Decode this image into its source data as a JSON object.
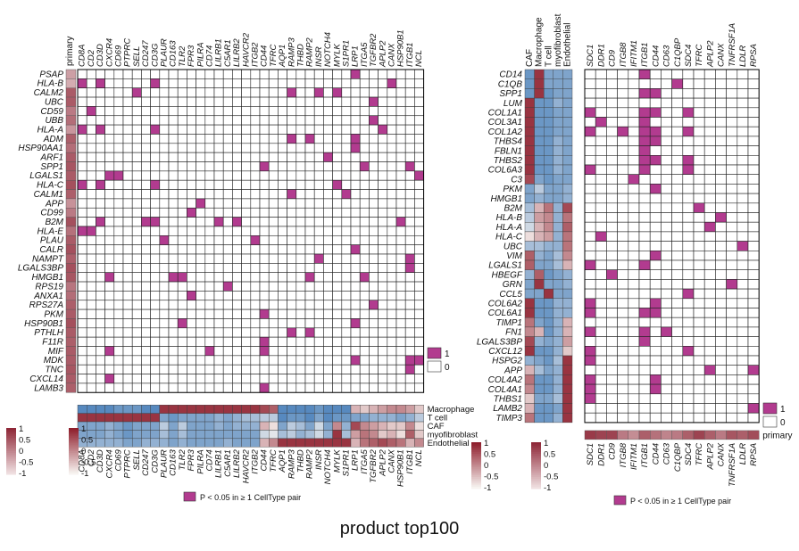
{
  "caption": "product  top100",
  "colors": {
    "sig": "#b23b8f",
    "grid": "#222222",
    "frame": "#000000",
    "diverging": {
      "neg": "#2f6fb3",
      "mid": "#f7f3f0",
      "pos": "#8f1f2d"
    },
    "primary": {
      "low": "#efdfe0",
      "high": "#8f2838"
    }
  },
  "chart_data": [
    {
      "type": "heatmap",
      "title": "",
      "rows": [
        "PSAP",
        "HLA-B",
        "CALM2",
        "UBC",
        "CD59",
        "UBB",
        "HLA-A",
        "ADM",
        "HSP90AA1",
        "ARF1",
        "SPP1",
        "LGALS1",
        "HLA-C",
        "CALM1",
        "APP",
        "CD99",
        "B2M",
        "HLA-E",
        "PLAU",
        "CALR",
        "NAMPT",
        "LGALS3BP",
        "HMGB1",
        "RPS19",
        "ANXA1",
        "RPS27A",
        "PKM",
        "HSP90B1",
        "PTHLH",
        "F11R",
        "MIF",
        "MDK",
        "TNC",
        "CXCL14",
        "LAMB3"
      ],
      "columns": [
        "CD8A",
        "CD2",
        "CD3D",
        "CXCR4",
        "CD69",
        "PTPRC",
        "SELL",
        "CD247",
        "CD3G",
        "PLAUR",
        "CD163",
        "TLR2",
        "FPR3",
        "PILRA",
        "CD74",
        "LILRB1",
        "C5AR1",
        "LILRB2",
        "HAVCR2",
        "ITGB2",
        "CD44",
        "TFRC",
        "AQP1",
        "RAMP3",
        "THBD",
        "RAMP2",
        "INSR",
        "NOTCH4",
        "MYLK",
        "S1PR1",
        "LRP1",
        "ITGA5",
        "TGFBR2",
        "APLP2",
        "CANX",
        "HSP90B1",
        "ITGB1",
        "NCL"
      ],
      "row_annotation": {
        "name": "primary",
        "values": [
          0.35,
          0.28,
          0.72,
          0.72,
          0.55,
          0.62,
          0.4,
          0.7,
          0.62,
          0.72,
          0.75,
          0.72,
          0.78,
          0.7,
          0.42,
          0.55,
          0.78,
          0.6,
          0.72,
          0.78,
          0.7,
          0.78,
          0.75,
          0.58,
          0.62,
          0.7,
          0.72,
          0.78,
          0.72,
          0.7,
          0.72,
          0.72,
          0.75,
          0.72,
          0.7
        ]
      },
      "matrix_value": "1 = P < 0.05 in ≥ 1 CellType pair, 0 = not significant",
      "significant_cells": [
        [
          "HLA-B",
          "CD8A"
        ],
        [
          "HLA-B",
          "CD3D"
        ],
        [
          "HLA-B",
          "CD3G"
        ],
        [
          "HLA-B",
          "CANX"
        ],
        [
          "PSAP",
          "LRP1"
        ],
        [
          "CALM2",
          "SELL"
        ],
        [
          "CALM2",
          "RAMP3"
        ],
        [
          "CALM2",
          "INSR"
        ],
        [
          "CALM2",
          "MYLK"
        ],
        [
          "UBC",
          "TGFBR2"
        ],
        [
          "CD59",
          "CD2"
        ],
        [
          "UBB",
          "TGFBR2"
        ],
        [
          "HLA-A",
          "CD8A"
        ],
        [
          "HLA-A",
          "CD3D"
        ],
        [
          "HLA-A",
          "CD3G"
        ],
        [
          "HLA-A",
          "APLP2"
        ],
        [
          "ADM",
          "RAMP3"
        ],
        [
          "ADM",
          "RAMP2"
        ],
        [
          "ADM",
          "LRP1"
        ],
        [
          "HSP90AA1",
          "LRP1"
        ],
        [
          "ARF1",
          "NOTCH4"
        ],
        [
          "SPP1",
          "CD44"
        ],
        [
          "SPP1",
          "ITGA5"
        ],
        [
          "SPP1",
          "ITGB1"
        ],
        [
          "LGALS1",
          "CXCR4"
        ],
        [
          "LGALS1",
          "CD69"
        ],
        [
          "LGALS1",
          "NCL"
        ],
        [
          "HLA-C",
          "CD8A"
        ],
        [
          "HLA-C",
          "CD3D"
        ],
        [
          "HLA-C",
          "CD3G"
        ],
        [
          "HLA-C",
          "MYLK"
        ],
        [
          "CALM1",
          "RAMP3"
        ],
        [
          "CALM1",
          "S1PR1"
        ],
        [
          "APP",
          "PILRA"
        ],
        [
          "CD99",
          "FPR3"
        ],
        [
          "B2M",
          "CD3D"
        ],
        [
          "B2M",
          "CD247"
        ],
        [
          "B2M",
          "CD3G"
        ],
        [
          "B2M",
          "LILRB1"
        ],
        [
          "B2M",
          "LILRB2"
        ],
        [
          "B2M",
          "HSP90B1"
        ],
        [
          "HLA-E",
          "CD8A"
        ],
        [
          "HLA-E",
          "CD2"
        ],
        [
          "PLAU",
          "PLAUR"
        ],
        [
          "PLAU",
          "ITGB2"
        ],
        [
          "CALR",
          "LRP1"
        ],
        [
          "NAMPT",
          "INSR"
        ],
        [
          "NAMPT",
          "ITGB1"
        ],
        [
          "LGALS3BP",
          "ITGB1"
        ],
        [
          "HMGB1",
          "CXCR4"
        ],
        [
          "HMGB1",
          "TLR2"
        ],
        [
          "HMGB1",
          "CD163"
        ],
        [
          "HMGB1",
          "RAMP2"
        ],
        [
          "HMGB1",
          "ITGA5"
        ],
        [
          "RPS19",
          "C5AR1"
        ],
        [
          "ANXA1",
          "FPR3"
        ],
        [
          "RPS27A",
          "TGFBR2"
        ],
        [
          "PKM",
          "CD44"
        ],
        [
          "HSP90B1",
          "TLR2"
        ],
        [
          "HSP90B1",
          "LRP1"
        ],
        [
          "PTHLH",
          "RAMP3"
        ],
        [
          "PTHLH",
          "RAMP2"
        ],
        [
          "F11R",
          "CD44"
        ],
        [
          "MIF",
          "CXCR4"
        ],
        [
          "MIF",
          "CD74"
        ],
        [
          "MIF",
          "CD44"
        ],
        [
          "MDK",
          "LRP1"
        ],
        [
          "MDK",
          "ITGB1"
        ],
        [
          "MDK",
          "NCL"
        ],
        [
          "TNC",
          "ITGB1"
        ],
        [
          "CXCL14",
          "CXCR4"
        ],
        [
          "LAMB3",
          "CD44"
        ]
      ],
      "column_annotation": {
        "tracks": [
          "Macrophage",
          "T cell",
          "CAF",
          "myofibroblast",
          "Endothelial"
        ],
        "values": [
          [
            -0.8,
            -0.8,
            -0.8,
            -0.8,
            -0.7,
            -0.7,
            -0.7,
            -0.8,
            -0.8,
            0.9,
            0.9,
            0.9,
            0.9,
            0.9,
            0.9,
            0.9,
            0.9,
            0.9,
            0.9,
            0.9,
            0.8,
            0.7,
            -0.8,
            -0.8,
            -0.8,
            -0.8,
            -0.7,
            -0.8,
            -0.8,
            -0.8,
            0.3,
            0.2,
            0.3,
            0.4,
            0.5,
            0.5,
            0.4,
            0.2
          ],
          [
            0.9,
            0.9,
            0.9,
            0.9,
            0.9,
            0.9,
            0.9,
            0.9,
            0.9,
            -0.6,
            -0.7,
            -0.6,
            -0.6,
            -0.6,
            -0.6,
            -0.5,
            -0.6,
            -0.5,
            -0.4,
            -0.4,
            -0.3,
            -0.3,
            -0.8,
            -0.7,
            -0.7,
            -0.8,
            -0.6,
            -0.8,
            -0.7,
            -0.7,
            -0.6,
            -0.6,
            -0.5,
            -0.5,
            -0.5,
            -0.6,
            -0.5,
            -0.3
          ],
          [
            -0.6,
            -0.6,
            -0.6,
            -0.5,
            -0.6,
            -0.7,
            -0.6,
            -0.6,
            -0.6,
            -0.3,
            -0.6,
            -0.3,
            -0.6,
            -0.6,
            -0.6,
            -0.5,
            -0.6,
            -0.5,
            -0.5,
            -0.5,
            0.3,
            0.1,
            -0.6,
            -0.3,
            -0.4,
            -0.6,
            -0.2,
            -0.6,
            0.5,
            -0.5,
            0.8,
            0.5,
            0.4,
            0.3,
            0.2,
            0.2,
            0.5,
            0.1
          ],
          [
            -0.6,
            -0.6,
            -0.6,
            -0.5,
            -0.6,
            -0.7,
            -0.6,
            -0.6,
            -0.6,
            -0.4,
            -0.6,
            -0.4,
            -0.6,
            -0.6,
            -0.6,
            -0.6,
            -0.6,
            -0.6,
            -0.6,
            -0.6,
            -0.2,
            -0.1,
            -0.4,
            -0.3,
            -0.5,
            -0.4,
            -0.2,
            -0.5,
            0.9,
            -0.4,
            0.4,
            0.6,
            0.5,
            0.2,
            0.3,
            0.1,
            0.7,
            0.2
          ],
          [
            -0.5,
            -0.5,
            -0.5,
            -0.5,
            -0.5,
            -0.6,
            -0.6,
            -0.5,
            -0.5,
            -0.5,
            -0.6,
            -0.5,
            -0.6,
            -0.6,
            -0.6,
            -0.6,
            -0.5,
            -0.6,
            -0.6,
            -0.6,
            0.3,
            0.5,
            0.9,
            0.9,
            0.9,
            0.9,
            0.9,
            0.9,
            0.9,
            0.9,
            0.3,
            0.6,
            0.7,
            0.8,
            0.7,
            0.6,
            0.3,
            0.5
          ]
        ]
      },
      "legend": {
        "levels": [
          "1",
          "0"
        ],
        "note": "P < 0.05 in ≥ 1 CellType pair"
      },
      "scale_ticks": [
        "1",
        "0.5",
        "0",
        "-0.5",
        "-1"
      ]
    },
    {
      "type": "heatmap",
      "title": "",
      "rows": [
        "CD14",
        "C1QB",
        "SPP1",
        "LUM",
        "COL1A1",
        "COL3A1",
        "COL1A2",
        "THBS4",
        "FBLN1",
        "THBS2",
        "COL6A3",
        "C3",
        "PKM",
        "HMGB1",
        "B2M",
        "HLA-B",
        "HLA-A",
        "HLA-C",
        "UBC",
        "VIM",
        "LGALS1",
        "HBEGF",
        "GRN",
        "CCL5",
        "COL6A2",
        "COL6A1",
        "TIMP1",
        "FN1",
        "LGALS3BP",
        "CXCL12",
        "HSPG2",
        "APP",
        "COL4A2",
        "COL4A1",
        "THBS1",
        "LAMB2",
        "TIMP3"
      ],
      "row_annotation": {
        "tracks": [
          "CAF",
          "Macrophage",
          "T cell",
          "myofibroblast",
          "Endothelial"
        ],
        "values": [
          [
            -0.7,
            -0.7,
            -0.7,
            0.9,
            0.9,
            0.9,
            0.9,
            0.9,
            0.9,
            0.9,
            0.9,
            0.8,
            -0.6,
            -0.6,
            -0.4,
            -0.3,
            -0.2,
            0.1,
            -0.4,
            0.7,
            0.7,
            -0.5,
            -0.6,
            -0.6,
            0.9,
            0.9,
            0.6,
            0.5,
            0.8,
            0.9,
            -0.5,
            0.3,
            0.6,
            0.5,
            0.2,
            0.3,
            0.6
          ],
          [
            0.9,
            0.9,
            0.9,
            -0.7,
            -0.7,
            -0.7,
            -0.7,
            -0.7,
            -0.7,
            -0.7,
            -0.7,
            -0.6,
            -0.3,
            -0.5,
            0.3,
            0.4,
            0.3,
            0.3,
            -0.4,
            -0.5,
            -0.6,
            0.7,
            0.9,
            -0.6,
            -0.7,
            -0.7,
            -0.6,
            0.3,
            -0.5,
            -0.7,
            -0.6,
            -0.4,
            -0.7,
            -0.7,
            -0.6,
            -0.7,
            -0.7
          ],
          [
            -0.6,
            -0.6,
            -0.7,
            -0.7,
            -0.7,
            -0.7,
            -0.7,
            -0.7,
            -0.7,
            -0.7,
            -0.7,
            -0.7,
            -0.6,
            -0.6,
            0.6,
            0.5,
            0.5,
            0.4,
            -0.5,
            -0.6,
            -0.6,
            -0.7,
            -0.6,
            0.9,
            -0.7,
            -0.7,
            -0.7,
            -0.7,
            -0.6,
            -0.7,
            -0.7,
            -0.6,
            -0.7,
            -0.7,
            -0.6,
            -0.7,
            -0.7
          ],
          [
            -0.6,
            -0.6,
            -0.6,
            -0.5,
            -0.6,
            -0.6,
            -0.6,
            -0.5,
            -0.5,
            -0.5,
            -0.5,
            -0.6,
            -0.6,
            -0.6,
            -0.5,
            -0.5,
            -0.5,
            -0.5,
            -0.5,
            -0.4,
            -0.4,
            -0.6,
            -0.6,
            -0.6,
            -0.5,
            -0.5,
            -0.5,
            -0.5,
            -0.5,
            -0.5,
            -0.4,
            -0.5,
            -0.5,
            -0.5,
            -0.4,
            -0.6,
            -0.5
          ],
          [
            -0.6,
            -0.6,
            -0.6,
            -0.6,
            -0.6,
            -0.6,
            -0.6,
            -0.6,
            -0.6,
            -0.6,
            -0.6,
            -0.6,
            -0.5,
            -0.5,
            0.8,
            0.6,
            0.7,
            0.6,
            0.6,
            0.5,
            0.3,
            -0.5,
            -0.5,
            -0.6,
            -0.5,
            -0.5,
            0.3,
            0.3,
            0.4,
            0.2,
            0.9,
            0.9,
            0.9,
            0.9,
            0.9,
            0.9,
            0.9
          ]
        ]
      },
      "columns": [
        "SDC1",
        "DDR1",
        "CD9",
        "ITGB8",
        "IFITM1",
        "ITGB1",
        "CD44",
        "CD63",
        "C1QBP",
        "SDC4",
        "TFRC",
        "APLP2",
        "CANX",
        "TNFRSF1A",
        "LDLR",
        "RPSA"
      ],
      "column_annotation": {
        "name": "primary",
        "values": [
          0.9,
          0.85,
          0.85,
          0.55,
          0.45,
          0.7,
          0.6,
          0.5,
          0.55,
          0.7,
          0.85,
          0.7,
          0.55,
          0.75,
          0.7,
          0.8
        ]
      },
      "matrix_value": "1 = P < 0.05 in ≥ 1 CellType pair, 0 = not significant",
      "significant_cells": [
        [
          "CD14",
          "ITGB1"
        ],
        [
          "C1QB",
          "C1QBP"
        ],
        [
          "SPP1",
          "ITGB1"
        ],
        [
          "SPP1",
          "CD44"
        ],
        [
          "COL1A1",
          "SDC1"
        ],
        [
          "COL1A1",
          "ITGB1"
        ],
        [
          "COL1A1",
          "CD44"
        ],
        [
          "COL1A1",
          "SDC4"
        ],
        [
          "COL3A1",
          "DDR1"
        ],
        [
          "COL3A1",
          "ITGB1"
        ],
        [
          "COL1A2",
          "SDC1"
        ],
        [
          "COL1A2",
          "ITGB8"
        ],
        [
          "COL1A2",
          "ITGB1"
        ],
        [
          "COL1A2",
          "CD44"
        ],
        [
          "COL1A2",
          "SDC4"
        ],
        [
          "THBS4",
          "ITGB1"
        ],
        [
          "THBS4",
          "CD44"
        ],
        [
          "FBLN1",
          "ITGB1"
        ],
        [
          "THBS2",
          "ITGB1"
        ],
        [
          "THBS2",
          "CD44"
        ],
        [
          "THBS2",
          "SDC4"
        ],
        [
          "COL6A3",
          "SDC1"
        ],
        [
          "COL6A3",
          "ITGB1"
        ],
        [
          "COL6A3",
          "SDC4"
        ],
        [
          "C3",
          "IFITM1"
        ],
        [
          "PKM",
          "CD44"
        ],
        [
          "B2M",
          "TFRC"
        ],
        [
          "HLA-B",
          "CANX"
        ],
        [
          "HLA-A",
          "APLP2"
        ],
        [
          "HLA-C",
          "DDR1"
        ],
        [
          "UBC",
          "LDLR"
        ],
        [
          "VIM",
          "CD44"
        ],
        [
          "LGALS1",
          "SDC1"
        ],
        [
          "LGALS1",
          "ITGB1"
        ],
        [
          "HBEGF",
          "CD9"
        ],
        [
          "GRN",
          "TNFRSF1A"
        ],
        [
          "CCL5",
          "SDC4"
        ],
        [
          "COL6A2",
          "SDC1"
        ],
        [
          "COL6A2",
          "CD44"
        ],
        [
          "COL6A1",
          "SDC1"
        ],
        [
          "COL6A1",
          "ITGB1"
        ],
        [
          "COL6A1",
          "CD44"
        ],
        [
          "FN1",
          "SDC1"
        ],
        [
          "FN1",
          "ITGB1"
        ],
        [
          "FN1",
          "CD63"
        ],
        [
          "LGALS3BP",
          "ITGB1"
        ],
        [
          "CXCL12",
          "SDC1"
        ],
        [
          "CXCL12",
          "SDC4"
        ],
        [
          "HSPG2",
          "SDC1"
        ],
        [
          "APP",
          "APLP2"
        ],
        [
          "APP",
          "RPSA"
        ],
        [
          "COL4A2",
          "SDC1"
        ],
        [
          "COL4A2",
          "CD44"
        ],
        [
          "COL4A1",
          "SDC1"
        ],
        [
          "COL4A1",
          "CD44"
        ],
        [
          "THBS1",
          "SDC1"
        ],
        [
          "LAMB2",
          "RPSA"
        ]
      ],
      "legend": {
        "levels": [
          "1",
          "0"
        ],
        "note": "P < 0.05 in ≥ 1 CellType pair"
      },
      "scale_ticks": [
        "1",
        "0.5",
        "0",
        "-0.5",
        "-1"
      ]
    }
  ]
}
